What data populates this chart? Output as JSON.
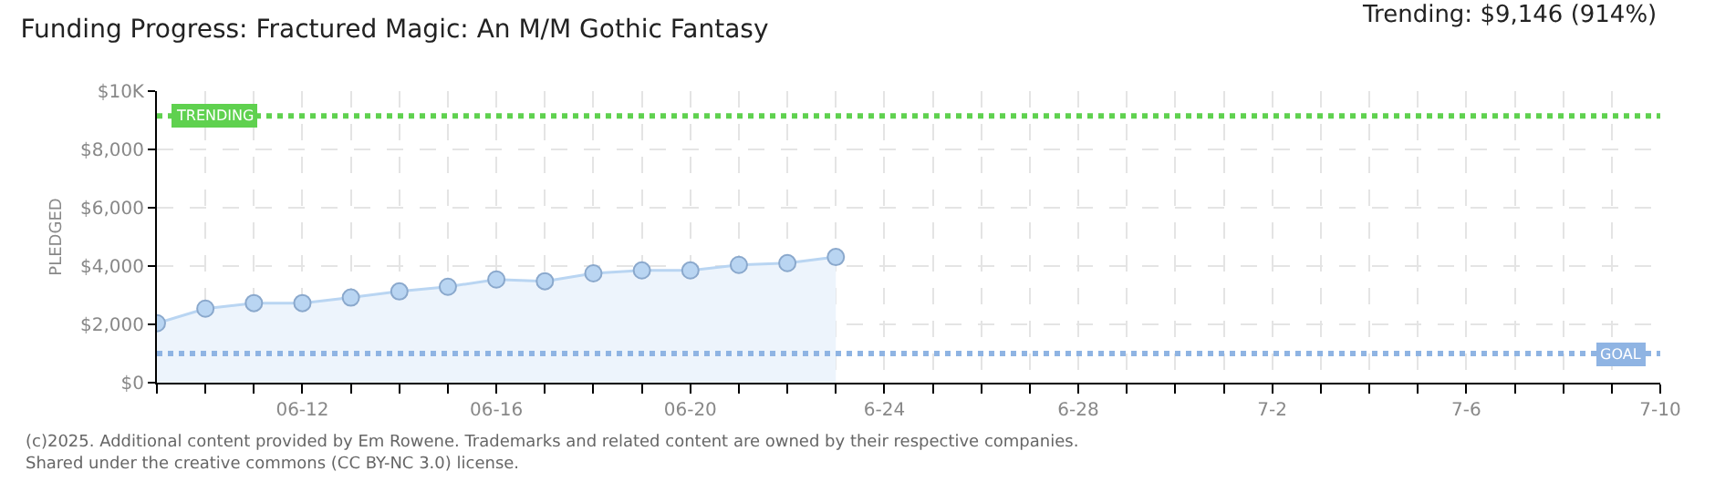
{
  "chart_data": {
    "type": "area",
    "title": "Funding Progress: Fractured Magic: An M/M Gothic Fantasy",
    "ylabel": "PLEDGED",
    "x": [
      "--06-09",
      "--06-10",
      "--06-11",
      "--06-12",
      "--06-13",
      "--06-14",
      "--06-15",
      "--06-16",
      "--06-17",
      "--06-18",
      "--06-19",
      "--06-20",
      "--06-21",
      "--06-22",
      "--06-23"
    ],
    "series": [
      {
        "color": "#b9d5f2",
        "values": [
          2040,
          2540,
          2730,
          2730,
          2920,
          3130,
          3290,
          3540,
          3480,
          3750,
          3850,
          3850,
          4040,
          4100,
          4310
        ]
      }
    ],
    "xlim": [
      "--06-09",
      "--07-10"
    ],
    "xticks": [
      {
        "value": "--06-09",
        "label": null
      },
      {
        "value": "--06-10",
        "label": null
      },
      {
        "value": "--06-11",
        "label": null
      },
      {
        "value": "--06-12",
        "label": "06-12"
      },
      {
        "value": "--06-13",
        "label": null
      },
      {
        "value": "--06-14",
        "label": null
      },
      {
        "value": "--06-15",
        "label": null
      },
      {
        "value": "--06-16",
        "label": "06-16"
      },
      {
        "value": "--06-17",
        "label": null
      },
      {
        "value": "--06-18",
        "label": null
      },
      {
        "value": "--06-19",
        "label": null
      },
      {
        "value": "--06-20",
        "label": "06-20"
      },
      {
        "value": "--06-21",
        "label": null
      },
      {
        "value": "--06-22",
        "label": null
      },
      {
        "value": "--06-23",
        "label": null
      },
      {
        "value": "--06-24",
        "label": "6-24"
      },
      {
        "value": "--06-25",
        "label": null
      },
      {
        "value": "--06-26",
        "label": null
      },
      {
        "value": "--06-27",
        "label": null
      },
      {
        "value": "--06-28",
        "label": "6-28"
      },
      {
        "value": "--06-29",
        "label": null
      },
      {
        "value": "--06-30",
        "label": null
      },
      {
        "value": "--07-01",
        "label": null
      },
      {
        "value": "--07-02",
        "label": "7-2"
      },
      {
        "value": "--07-03",
        "label": null
      },
      {
        "value": "--07-04",
        "label": null
      },
      {
        "value": "--07-05",
        "label": null
      },
      {
        "value": "--07-06",
        "label": "7-6"
      },
      {
        "value": "--07-07",
        "label": null
      },
      {
        "value": "--07-08",
        "label": null
      },
      {
        "value": "--07-09",
        "label": null
      },
      {
        "value": "--07-10",
        "label": "7-10"
      }
    ],
    "ylim": [
      0,
      10000
    ],
    "yticks": [
      {
        "value": 0,
        "label": "$0"
      },
      {
        "value": 2000,
        "label": "$2,000"
      },
      {
        "value": 4000,
        "label": "$4,000"
      },
      {
        "value": 6000,
        "label": "$6,000"
      },
      {
        "value": 8000,
        "label": "$8,000"
      },
      {
        "value": 10000,
        "label": "$10K"
      }
    ],
    "ref_lines": [
      {
        "axis": "y",
        "value": 9146,
        "label": "TRENDING",
        "color": "#5fd14f",
        "line_style": "dotted"
      },
      {
        "axis": "y",
        "value": 1000,
        "label": "GOAL",
        "color": "#8fb4e3",
        "line_style": "dotted"
      }
    ],
    "annotations": [
      "Trending: $9,146 (914%)",
      "(c)2025. Additional content provided by Em Rowene. Trademarks and related content are owned by their respective companies.",
      "Shared under the creative commons (CC BY-NC 3.0) license."
    ],
    "grid": true,
    "marker": "circle",
    "line_style": "solid"
  }
}
